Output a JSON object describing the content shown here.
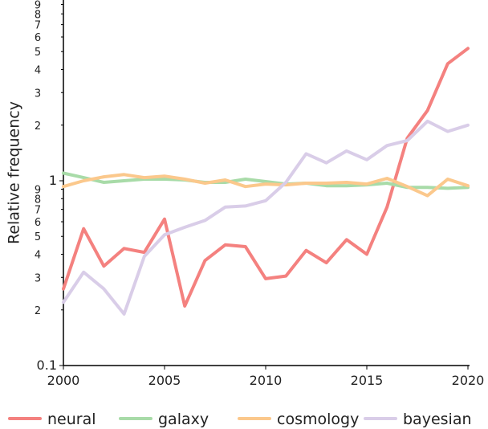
{
  "chart_data": {
    "type": "line",
    "title": "",
    "xlabel": "",
    "ylabel": "Relative frequency",
    "y_scale": "log",
    "ylim": [
      0.1,
      10
    ],
    "xlim": [
      2000,
      2020
    ],
    "x_ticks": [
      2000,
      2005,
      2010,
      2015,
      2020
    ],
    "x_tick_labels": [
      "2000",
      "2005",
      "2010",
      "2015",
      "2020"
    ],
    "y_major_ticks": [
      0.1,
      1
    ],
    "y_major_tick_labels": [
      "0.1",
      "1"
    ],
    "y_minor_ticks": [
      0.2,
      0.3,
      0.4,
      0.5,
      0.6,
      0.7,
      0.8,
      0.9,
      2,
      3,
      4,
      5,
      6,
      7,
      8,
      9
    ],
    "y_minor_tick_labels": [
      "2",
      "3",
      "4",
      "5",
      "6",
      "7",
      "8",
      "9",
      "2",
      "3",
      "4",
      "5",
      "6",
      "7",
      "8",
      "9"
    ],
    "grid": false,
    "legend_position": "bottom",
    "x": [
      2000,
      2001,
      2002,
      2003,
      2004,
      2005,
      2006,
      2007,
      2008,
      2009,
      2010,
      2011,
      2012,
      2013,
      2014,
      2015,
      2016,
      2017,
      2018,
      2019,
      2020
    ],
    "series": [
      {
        "name": "neural",
        "color": "#f4817f",
        "values": [
          0.26,
          0.55,
          0.345,
          0.43,
          0.41,
          0.62,
          0.21,
          0.37,
          0.45,
          0.44,
          0.295,
          0.305,
          0.42,
          0.36,
          0.48,
          0.4,
          0.72,
          1.7,
          2.4,
          4.3,
          5.2
        ]
      },
      {
        "name": "galaxy",
        "color": "#a8dba8",
        "values": [
          1.1,
          1.04,
          0.98,
          1.0,
          1.02,
          1.02,
          1.01,
          0.98,
          0.98,
          1.02,
          0.99,
          0.96,
          0.97,
          0.94,
          0.94,
          0.95,
          0.97,
          0.92,
          0.92,
          0.91,
          0.92
        ]
      },
      {
        "name": "cosmology",
        "color": "#fbc88c",
        "values": [
          0.93,
          1.0,
          1.05,
          1.08,
          1.04,
          1.06,
          1.02,
          0.97,
          1.01,
          0.93,
          0.96,
          0.95,
          0.97,
          0.97,
          0.98,
          0.96,
          1.03,
          0.93,
          0.83,
          1.02,
          0.94
        ]
      },
      {
        "name": "bayesian",
        "color": "#d9cde8",
        "values": [
          0.22,
          0.32,
          0.26,
          0.19,
          0.39,
          0.51,
          0.56,
          0.61,
          0.72,
          0.73,
          0.78,
          0.98,
          1.4,
          1.25,
          1.45,
          1.3,
          1.55,
          1.65,
          2.1,
          1.85,
          2.0
        ]
      }
    ]
  }
}
